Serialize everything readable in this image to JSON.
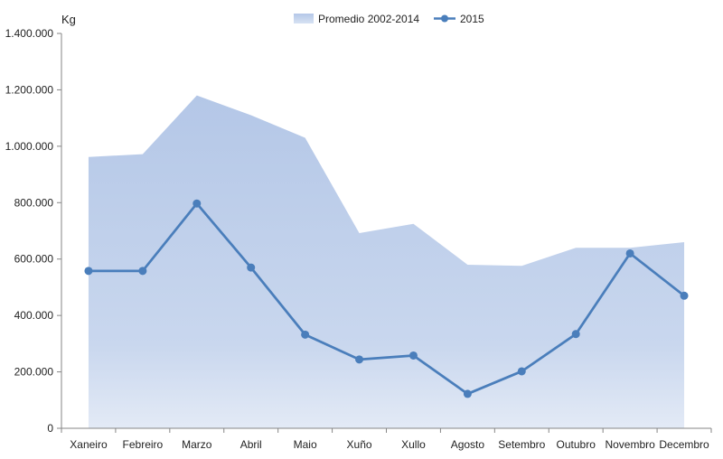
{
  "chart_data": {
    "type": "area",
    "ylabel": "Kg",
    "ylim": [
      0,
      1400000
    ],
    "yticks": [
      0,
      200000,
      400000,
      600000,
      800000,
      1000000,
      1200000,
      1400000
    ],
    "ytick_labels": [
      "0",
      "200.000",
      "400.000",
      "600.000",
      "800.000",
      "1.000.000",
      "1.200.000",
      "1.400.000"
    ],
    "categories": [
      "Xaneiro",
      "Febreiro",
      "Marzo",
      "Abril",
      "Maio",
      "Xuño",
      "Xullo",
      "Agosto",
      "Setembro",
      "Outubro",
      "Novembro",
      "Decembro"
    ],
    "grid": false,
    "legend_position": "top-center",
    "series": [
      {
        "name": "Promedio 2002-2014",
        "type": "area",
        "color": "#b4c7e7",
        "values": [
          962000,
          972000,
          1180000,
          1110000,
          1030000,
          692000,
          725000,
          580000,
          576000,
          640000,
          640000,
          660000
        ]
      },
      {
        "name": "2015",
        "type": "line",
        "color": "#4a7ebb",
        "values": [
          558000,
          558000,
          797000,
          570000,
          332000,
          244000,
          258000,
          122000,
          202000,
          334000,
          620000,
          470000
        ]
      }
    ]
  }
}
